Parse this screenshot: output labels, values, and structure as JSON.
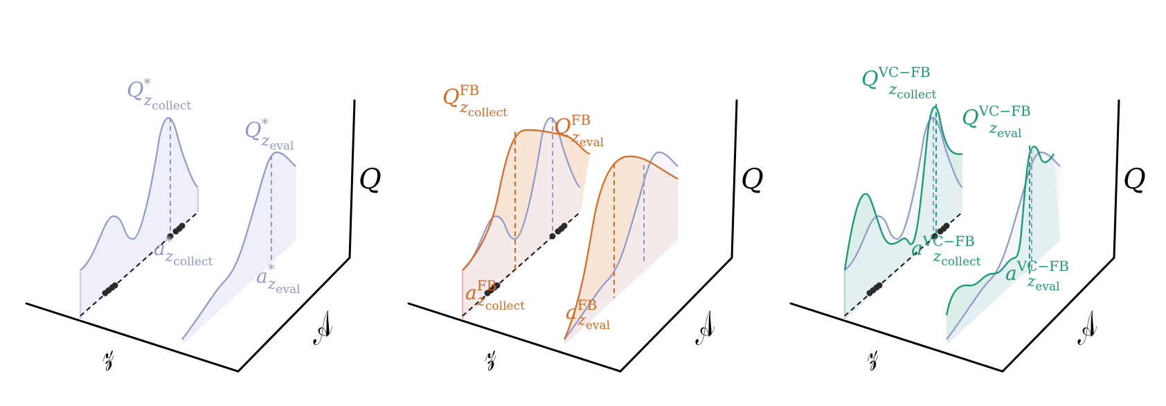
{
  "colors": {
    "optimal": "#8f99c9",
    "optimal_fill": "#eeeff9",
    "fb": "#d8681f",
    "fb_fill": "#f8e2d2",
    "vcfb": "#1a9b77",
    "vcfb_fill": "#d7ece7",
    "axis": "#000000",
    "point": "#2a2a2a"
  },
  "axes": {
    "z": "𝓏",
    "a": "𝒜",
    "q": "Q"
  },
  "panels": [
    {
      "id": "optimal",
      "q_collect": {
        "base": "Q",
        "sup": "*",
        "sub_base": "z",
        "sub_sub": "collect"
      },
      "q_eval": {
        "base": "Q",
        "sup": "*",
        "sub_base": "z",
        "sub_sub": "eval"
      },
      "a_collect": {
        "base": "a",
        "sup": "*",
        "sub_base": "z",
        "sub_sub": "collect"
      },
      "a_eval": {
        "base": "a",
        "sup": "*",
        "sub_base": "z",
        "sub_sub": "eval"
      }
    },
    {
      "id": "fb",
      "q_collect": {
        "base": "Q",
        "sup": "FB",
        "sub_base": "z",
        "sub_sub": "collect"
      },
      "q_eval": {
        "base": "Q",
        "sup": "FB",
        "sub_base": "z",
        "sub_sub": "eval"
      },
      "a_collect": {
        "base": "a",
        "sup": "FB",
        "sub_base": "z",
        "sub_sub": "collect"
      },
      "a_eval": {
        "base": "a",
        "sup": "FB",
        "sub_base": "z",
        "sub_sub": "eval"
      }
    },
    {
      "id": "vcfb",
      "q_collect": {
        "base": "Q",
        "sup": "VC−FB",
        "sub_base": "z",
        "sub_sub": "collect"
      },
      "q_eval": {
        "base": "Q",
        "sup": "VC−FB",
        "sub_base": "z",
        "sub_sub": "eval"
      },
      "a_collect": {
        "base": "a",
        "sup": "VC−FB",
        "sub_base": "z",
        "sub_sub": "collect"
      },
      "a_eval": {
        "base": "a",
        "sup": "VC−FB",
        "sub_base": "z",
        "sub_sub": "eval"
      }
    }
  ]
}
